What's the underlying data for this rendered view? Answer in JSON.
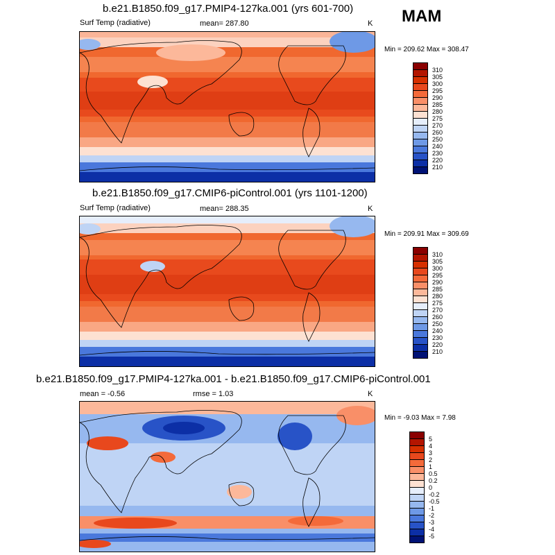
{
  "season": "MAM",
  "panels": [
    {
      "title": "b.e21.B1850.f09_g17.PMIP4-127ka.001 (yrs 601-700)",
      "left_label": "Surf Temp (radiative)",
      "center_label": "mean= 287.80",
      "units": "K",
      "minmax": "Min = 209.62 Max = 308.47",
      "colorbar": {
        "labels": [
          "310",
          "305",
          "300",
          "295",
          "290",
          "285",
          "280",
          "275",
          "270",
          "260",
          "250",
          "240",
          "230",
          "220",
          "210"
        ],
        "colors": [
          "#8a0000",
          "#b31500",
          "#d63000",
          "#e8481d",
          "#f46a3a",
          "#f98f68",
          "#fcb89a",
          "#fde1d2",
          "#e6eefb",
          "#bfd4f5",
          "#96b8ef",
          "#6e99e6",
          "#4a78dc",
          "#2853c7",
          "#0c2fa6",
          "#001275"
        ]
      }
    },
    {
      "title": "b.e21.B1850.f09_g17.CMIP6-piControl.001 (yrs 1101-1200)",
      "left_label": "Surf Temp (radiative)",
      "center_label": "mean= 288.35",
      "units": "K",
      "minmax": "Min = 209.91 Max = 309.69",
      "colorbar": {
        "labels": [
          "310",
          "305",
          "300",
          "295",
          "290",
          "285",
          "280",
          "275",
          "270",
          "260",
          "250",
          "240",
          "230",
          "220",
          "210"
        ],
        "colors": [
          "#8a0000",
          "#b31500",
          "#d63000",
          "#e8481d",
          "#f46a3a",
          "#f98f68",
          "#fcb89a",
          "#fde1d2",
          "#e6eefb",
          "#bfd4f5",
          "#96b8ef",
          "#6e99e6",
          "#4a78dc",
          "#2853c7",
          "#0c2fa6",
          "#001275"
        ]
      }
    },
    {
      "title": "b.e21.B1850.f09_g17.PMIP4-127ka.001 - b.e21.B1850.f09_g17.CMIP6-piControl.001",
      "left_label": "mean =  -0.56",
      "center_label": "rmse =   1.03",
      "units": "K",
      "minmax": "Min =  -9.03 Max =   7.98",
      "colorbar": {
        "labels": [
          "5",
          "4",
          "3",
          "2",
          "1",
          "0.5",
          "0.2",
          "0",
          "-0.2",
          "-0.5",
          "-1",
          "-2",
          "-3",
          "-4",
          "-5"
        ],
        "colors": [
          "#8a0000",
          "#b31500",
          "#d63000",
          "#e8481d",
          "#f46a3a",
          "#f98f68",
          "#fcb89a",
          "#fde1d2",
          "#e6eefb",
          "#bfd4f5",
          "#96b8ef",
          "#6e99e6",
          "#4a78dc",
          "#2853c7",
          "#0c2fa6",
          "#001275"
        ]
      }
    }
  ]
}
